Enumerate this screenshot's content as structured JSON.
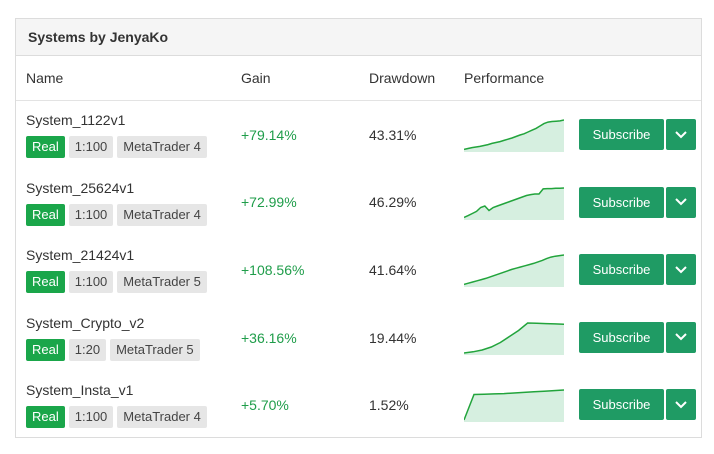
{
  "panel": {
    "title": "Systems by JenyaKo"
  },
  "columns": {
    "name": "Name",
    "gain": "Gain",
    "drawdown": "Drawdown",
    "performance": "Performance"
  },
  "colors": {
    "accent": "#1f9b64",
    "real": "#1aa64a",
    "gain": "#1f9d4a",
    "spark_line": "#22a43c",
    "spark_fill": "#d6efe0"
  },
  "rows": [
    {
      "name": "System_1122v1",
      "tags": [
        "Real",
        "1:100",
        "MetaTrader 4"
      ],
      "gain": "+79.14%",
      "drawdown": "43.31%",
      "subscribe": "Subscribe",
      "icon": "chevron-down-icon",
      "performance": [
        0.02,
        0.05,
        0.08,
        0.1,
        0.12,
        0.15,
        0.18,
        0.22,
        0.25,
        0.28,
        0.32,
        0.36,
        0.4,
        0.45,
        0.5,
        0.54,
        0.6,
        0.66,
        0.72,
        0.8,
        0.88,
        0.93,
        0.95,
        0.96,
        0.97,
        1
      ]
    },
    {
      "name": "System_25624v1",
      "tags": [
        "Real",
        "1:100",
        "MetaTrader 4"
      ],
      "gain": "+72.99%",
      "drawdown": "46.29%",
      "subscribe": "Subscribe",
      "icon": "chevron-down-icon",
      "performance": [
        0.02,
        0.08,
        0.15,
        0.22,
        0.35,
        0.4,
        0.25,
        0.35,
        0.4,
        0.45,
        0.5,
        0.55,
        0.6,
        0.65,
        0.7,
        0.75,
        0.78,
        0.8,
        0.8,
        0.97,
        0.98,
        0.98,
        0.99,
        0.99,
        1
      ]
    },
    {
      "name": "System_21424v1",
      "tags": [
        "Real",
        "1:100",
        "MetaTrader 5"
      ],
      "gain": "+108.56%",
      "drawdown": "41.64%",
      "subscribe": "Subscribe",
      "icon": "chevron-down-icon",
      "performance": [
        0.02,
        0.06,
        0.1,
        0.14,
        0.18,
        0.22,
        0.27,
        0.32,
        0.37,
        0.42,
        0.47,
        0.52,
        0.56,
        0.6,
        0.64,
        0.68,
        0.72,
        0.77,
        0.82,
        0.88,
        0.93,
        0.96,
        0.98,
        1
      ]
    },
    {
      "name": "System_Crypto_v2",
      "tags": [
        "Real",
        "1:20",
        "MetaTrader 5"
      ],
      "gain": "+36.16%",
      "drawdown": "19.44%",
      "subscribe": "Subscribe",
      "icon": "chevron-down-icon",
      "performance": [
        0,
        0.04,
        0.1,
        0.2,
        0.35,
        0.55,
        0.75,
        1,
        0.99,
        0.98,
        0.97,
        0.96
      ]
    },
    {
      "name": "System_Insta_v1",
      "tags": [
        "Real",
        "1:100",
        "MetaTrader 4"
      ],
      "gain": "+5.70%",
      "drawdown": "1.52%",
      "subscribe": "Subscribe",
      "icon": "chevron-down-icon",
      "performance": [
        0,
        0.85,
        0.86,
        0.87,
        0.88,
        0.9,
        0.92,
        0.94,
        0.96,
        0.98,
        1
      ]
    }
  ]
}
